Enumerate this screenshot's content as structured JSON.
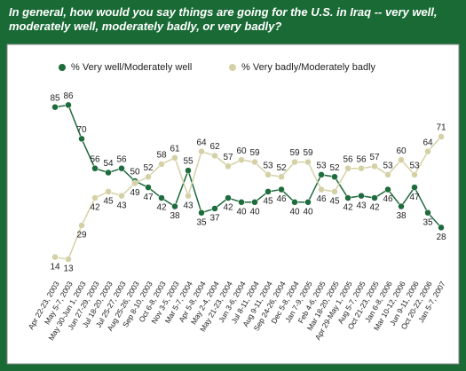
{
  "chart_data": {
    "type": "line",
    "title": "In general, how would you say things are going for the U.S. in Iraq -- very well, moderately well, moderately badly, or very badly?",
    "categories": [
      "Apr 22-23, 2003",
      "May 5-7, 2003",
      "May 30-Jun 1, 2003",
      "Jun 27-29, 2003",
      "Jul 18-20, 2003",
      "Jul 25-27, 2003",
      "Aug 25-26, 2003",
      "Sep 8-10, 2003",
      "Oct 6-8, 2003",
      "Nov 3-5, 2003",
      "Mar 5-7, 2004",
      "Apr 5-8, 2004",
      "May 2-4, 2004",
      "May 21-23, 2004",
      "Jun 3-6, 2004",
      "Jul 8-11, 2004",
      "Aug 9-11, 2004",
      "Sep 24-26, 2004",
      "Dec 5-8, 2004",
      "Jan 7-9, 2005",
      "Feb 4-6, 2005",
      "Mar 18-20, 2005",
      "Apr 29-May 1, 2005",
      "Aug 5-7, 2005",
      "Oct 21-23, 2005",
      "Jan 6-8, 2006",
      "Mar 10-12, 2006",
      "Jun 9-11, 2006",
      "Oct 20-22, 2006",
      "Jan 5-7, 2007"
    ],
    "series": [
      {
        "name": "% Very well/Moderately well",
        "color": "#1e6b3c",
        "values": [
          85,
          86,
          70,
          56,
          54,
          56,
          50,
          47,
          42,
          38,
          55,
          35,
          37,
          42,
          40,
          40,
          45,
          46,
          40,
          40,
          53,
          52,
          42,
          43,
          42,
          46,
          38,
          47,
          35,
          28
        ]
      },
      {
        "name": "% Very badly/Moderately badly",
        "color": "#d4d1a6",
        "values": [
          14,
          13,
          29,
          42,
          45,
          43,
          49,
          52,
          58,
          61,
          43,
          64,
          62,
          57,
          60,
          59,
          53,
          52,
          59,
          59,
          46,
          45,
          56,
          56,
          57,
          53,
          60,
          53,
          64,
          71
        ]
      }
    ]
  }
}
